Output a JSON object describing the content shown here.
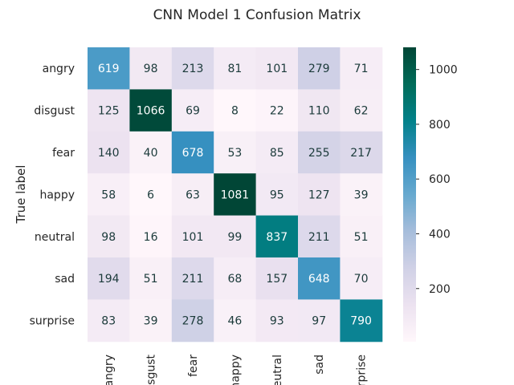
{
  "chart_data": {
    "type": "heatmap",
    "title": "CNN Model 1 Confusion Matrix",
    "ylabel": "True label",
    "xlabel": "",
    "row_labels": [
      "angry",
      "disgust",
      "fear",
      "happy",
      "neutral",
      "sad",
      "surprise"
    ],
    "col_labels": [
      "angry",
      "sgust",
      "fear",
      "happy",
      "eutral",
      "sad",
      "rprise"
    ],
    "values": [
      [
        619,
        98,
        213,
        81,
        101,
        279,
        71
      ],
      [
        125,
        1066,
        69,
        8,
        22,
        110,
        62
      ],
      [
        140,
        40,
        678,
        53,
        85,
        255,
        217
      ],
      [
        58,
        6,
        63,
        1081,
        95,
        127,
        39
      ],
      [
        98,
        16,
        101,
        99,
        837,
        211,
        51
      ],
      [
        194,
        51,
        211,
        68,
        157,
        648,
        70
      ],
      [
        83,
        39,
        278,
        46,
        93,
        97,
        790
      ]
    ],
    "colormap": "PuBuGn",
    "colormap_stops": [
      "#fff7fb",
      "#ece2f0",
      "#d0d1e6",
      "#a6bddb",
      "#67a9cf",
      "#3690c0",
      "#02818a",
      "#016c59",
      "#014636"
    ],
    "vmin": 6,
    "vmax": 1081,
    "colorbar_ticks": [
      200,
      400,
      600,
      800,
      1000
    ],
    "text_color_dark": "#1b3a3a",
    "text_color_light": "#ffffff"
  }
}
